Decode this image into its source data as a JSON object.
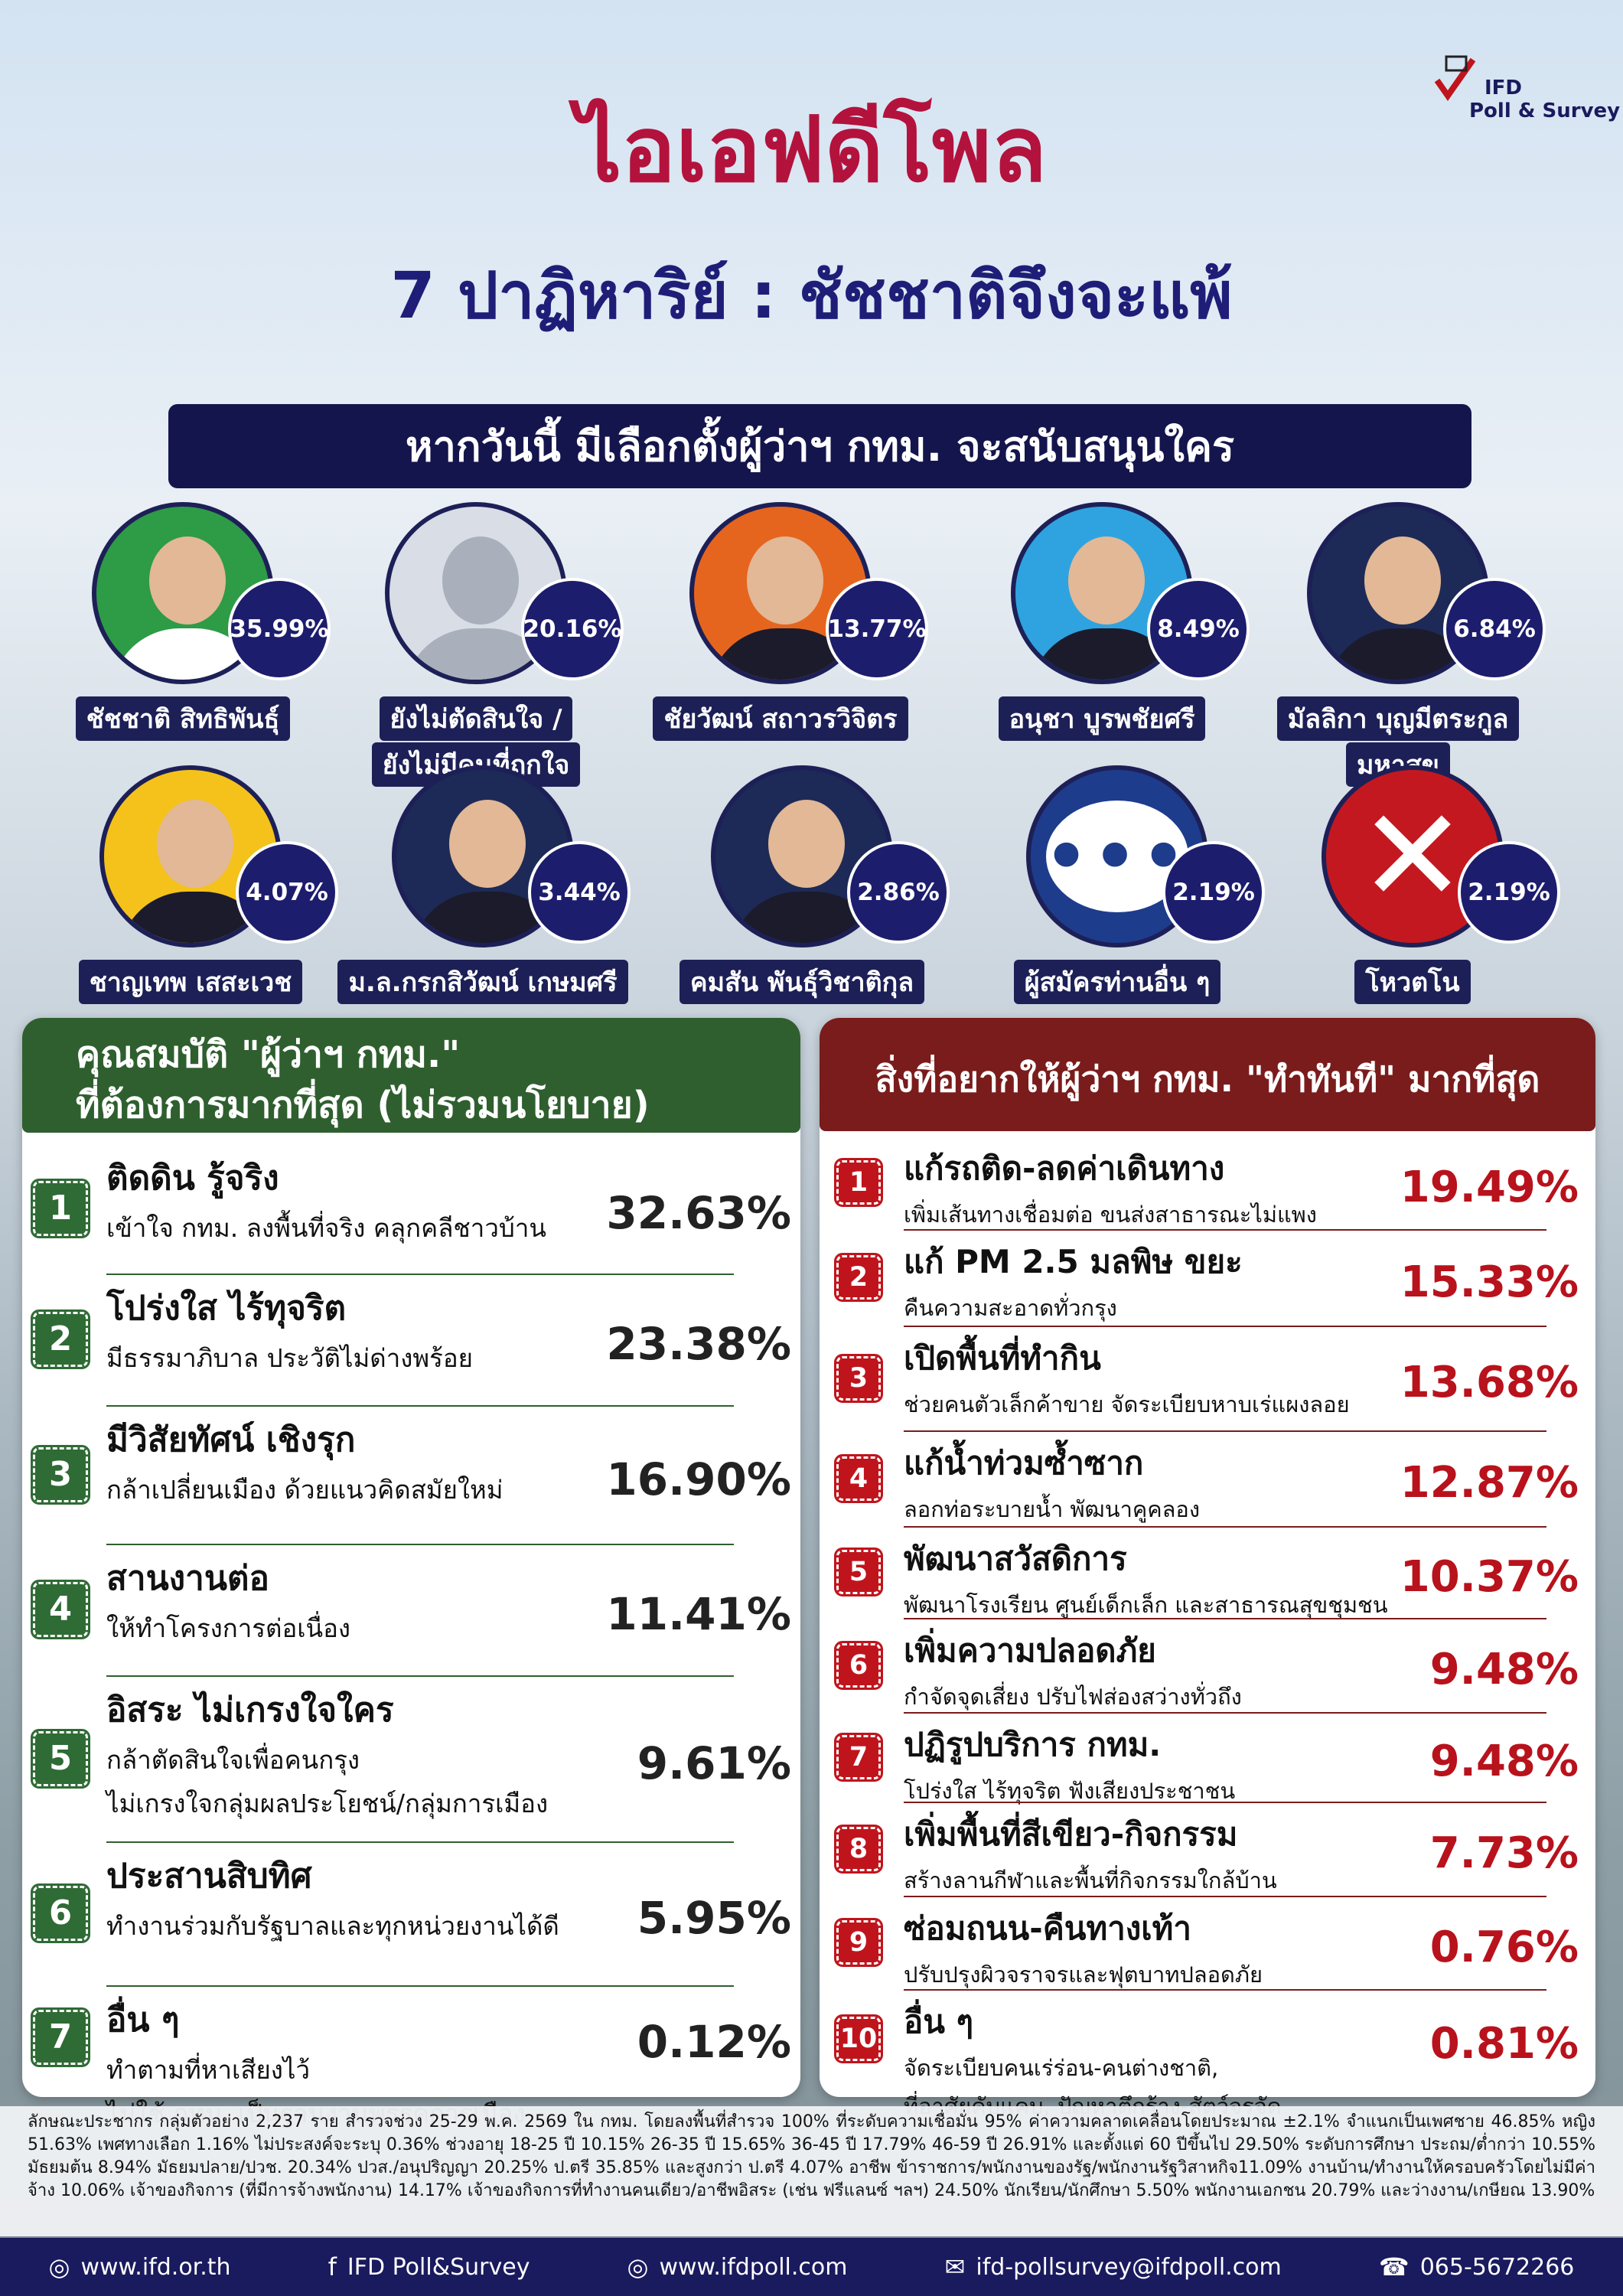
{
  "header": {
    "logo_top": "IFD",
    "logo_bottom": "Poll & Survey",
    "title": "ไอเอฟดีโพล",
    "subtitle": "7 ปาฏิหาริย์ : ชัชชาติจึงจะแพ้",
    "question": "หากวันนี้ มีเลือกตั้งผู้ว่าฯ กทม. จะสนับสนุนใคร"
  },
  "candidates": [
    {
      "name": [
        "ชัชชาติ สิทธิพันธุ์"
      ],
      "percent": "35.99%"
    },
    {
      "name": [
        "ยังไม่ตัดสินใจ /",
        "ยังไม่มีคนที่ถูกใจ"
      ],
      "percent": "20.16%"
    },
    {
      "name": [
        "ชัยวัฒน์ สถาวรวิจิตร"
      ],
      "percent": "13.77%"
    },
    {
      "name": [
        "อนุชา บูรพชัยศรี"
      ],
      "percent": "8.49%"
    },
    {
      "name": [
        "มัลลิกา บุญมีตระกูล",
        "มหาสุข"
      ],
      "percent": "6.84%"
    },
    {
      "name": [
        "ชาญเทพ เสสะเวช"
      ],
      "percent": "4.07%"
    },
    {
      "name": [
        "ม.ล.กรกสิวัฒน์ เกษมศรี"
      ],
      "percent": "3.44%"
    },
    {
      "name": [
        "คมสัน พันธุ์วิชาติกุล"
      ],
      "percent": "2.86%"
    },
    {
      "name": [
        "ผู้สมัครท่านอื่น ๆ"
      ],
      "percent": "2.19%"
    },
    {
      "name": [
        "โหวตโน"
      ],
      "percent": "2.19%"
    }
  ],
  "qualities": {
    "title": [
      "คุณสมบัติ \"ผู้ว่าฯ กทม.\"",
      "ที่ต้องการมากที่สุด (ไม่รวมนโยบาย)"
    ],
    "items": [
      {
        "number": "1",
        "title": "ติดดิน รู้จริง",
        "description": [
          "เข้าใจ กทม. ลงพื้นที่จริง คลุกคลีชาวบ้าน"
        ],
        "percent": "32.63%"
      },
      {
        "number": "2",
        "title": "โปร่งใส ไร้ทุจริต",
        "description": [
          "มีธรรมาภิบาล ประวัติไม่ด่างพร้อย"
        ],
        "percent": "23.38%"
      },
      {
        "number": "3",
        "title": "มีวิสัยทัศน์ เชิงรุก",
        "description": [
          "กล้าเปลี่ยนเมือง ด้วยแนวคิดสมัยใหม่"
        ],
        "percent": "16.90%"
      },
      {
        "number": "4",
        "title": "สานงานต่อ",
        "description": [
          "ให้ทำโครงการต่อเนื่อง"
        ],
        "percent": "11.41%"
      },
      {
        "number": "5",
        "title": "อิสระ ไม่เกรงใจใคร",
        "description": [
          "กล้าตัดสินใจเพื่อคนกรุง",
          "ไม่เกรงใจกลุ่มผลประโยชน์/กลุ่มการเมือง"
        ],
        "percent": "9.61%"
      },
      {
        "number": "6",
        "title": "ประสานสิบทิศ",
        "description": [
          "ทำงานร่วมกับรัฐบาลและทุกหน่วยงานได้ดี"
        ],
        "percent": "5.95%"
      },
      {
        "number": "7",
        "title": "อื่น ๆ",
        "description": [
          "ทำตามที่หาเสียงไว้",
          "ไม่ใช้ กทม. เป็นฐานงานพรรคการเมือง"
        ],
        "percent": "0.12%"
      }
    ]
  },
  "actions": {
    "title": [
      "สิ่งที่อยากให้ผู้ว่าฯ กทม. \"ทำทันที\" มากที่สุด"
    ],
    "items": [
      {
        "number": "1",
        "title": "แก้รถติด-ลดค่าเดินทาง",
        "description": [
          "เพิ่มเส้นทางเชื่อมต่อ ขนส่งสาธารณะไม่แพง"
        ],
        "percent": "19.49%"
      },
      {
        "number": "2",
        "title": "แก้ PM 2.5 มลพิษ ขยะ",
        "description": [
          "คืนความสะอาดทั่วกรุง"
        ],
        "percent": "15.33%"
      },
      {
        "number": "3",
        "title": "เปิดพื้นที่ทำกิน",
        "description": [
          "ช่วยคนตัวเล็กค้าขาย จัดระเบียบหาบเร่แผงลอย"
        ],
        "percent": "13.68%"
      },
      {
        "number": "4",
        "title": "แก้น้ำท่วมซ้ำซาก",
        "description": [
          "ลอกท่อระบายน้ำ พัฒนาคูคลอง"
        ],
        "percent": "12.87%"
      },
      {
        "number": "5",
        "title": "พัฒนาสวัสดิการ",
        "description": [
          "พัฒนาโรงเรียน ศูนย์เด็กเล็ก และสาธารณสุขชุมชน"
        ],
        "percent": "10.37%"
      },
      {
        "number": "6",
        "title": "เพิ่มความปลอดภัย",
        "description": [
          "กำจัดจุดเสี่ยง ปรับไฟส่องสว่างทั่วถึง"
        ],
        "percent": "9.48%"
      },
      {
        "number": "7",
        "title": "ปฏิรูปบริการ กทม.",
        "description": [
          "โปร่งใส ไร้ทุจริต ฟังเสียงประชาชน"
        ],
        "percent": "9.48%"
      },
      {
        "number": "8",
        "title": "เพิ่มพื้นที่สีเขียว-กิจกรรม",
        "description": [
          "สร้างลานกีฬาและพื้นที่กิจกรรมใกล้บ้าน"
        ],
        "percent": "7.73%"
      },
      {
        "number": "9",
        "title": "ซ่อมถนน-คืนทางเท้า",
        "description": [
          "ปรับปรุงผิวจราจรและฟุตบาทปลอดภัย"
        ],
        "percent": "0.76%"
      },
      {
        "number": "10",
        "title": "อื่น ๆ",
        "description": [
          "จัดระเบียบคนเร่ร่อน-คนต่างชาติ,",
          "ที่อาศัยคับแคบ, ปัญหาตึกร้าง-สัตว์จรจัด"
        ],
        "percent": "0.81%"
      }
    ]
  },
  "footnote": "ลักษณะประชากร กลุ่มตัวอย่าง 2,237 ราย สำรวจช่วง 25-29 พ.ค. 2569 ใน กทม. โดยลงพื้นที่สำรวจ 100% ที่ระดับความเชื่อมั่น 95% ค่าความคลาดเคลื่อนโดยประมาณ ±2.1% จำแนกเป็นเพศชาย 46.85% หญิง 51.63% เพศทางเลือก 1.16% ไม่ประสงค์จะระบุ 0.36% ช่วงอายุ 18-25 ปี 10.15% 26-35 ปี 15.65% 36-45 ปี 17.79% 46-59 ปี 26.91% และตั้งแต่ 60 ปีขึ้นไป 29.50% ระดับการศึกษา ประถม/ต่ำกว่า 10.55% มัธยมต้น 8.94% มัธยมปลาย/ปวช. 20.34% ปวส./อนุปริญญา 20.25% ป.ตรี 35.85% และสูงกว่า ป.ตรี 4.07% อาชีพ ข้าราชการ/พนักงานของรัฐ/พนักงานรัฐวิสาหกิจ11.09% งานบ้าน/ทำงานให้ครอบครัวโดยไม่มีค่าจ้าง 10.06% เจ้าของกิจการ (ที่มีการจ้างพนักงาน) 14.17% เจ้าของกิจการที่ทำงานคนเดียว/อาชีพอิสระ (เช่น ฟรีแลนซ์ ฯลฯ) 24.50% นักเรียน/นักศึกษา 5.50% พนักงานเอกชน 20.79% และว่างงาน/เกษียณ 13.90%",
  "footer": [
    "www.ifd.or.th",
    "IFD Poll&Survey",
    "www.ifdpoll.com",
    "ifd-pollsurvey@ifdpoll.com",
    "065-5672266"
  ]
}
